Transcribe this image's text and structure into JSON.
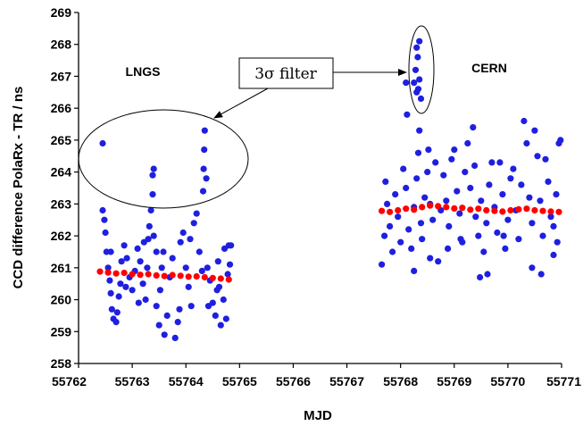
{
  "chart_data": {
    "type": "scatter",
    "title": "",
    "xlabel": "MJD",
    "ylabel": "CCD difference PolaRx - TR / ns",
    "xlim": [
      55762,
      55771
    ],
    "ylim": [
      258,
      269
    ],
    "xticks": [
      "55762",
      "55763",
      "55764",
      "55765",
      "55766",
      "55767",
      "55768",
      "55769",
      "55770",
      "55771"
    ],
    "yticks": [
      "258",
      "259",
      "260",
      "261",
      "262",
      "263",
      "264",
      "265",
      "266",
      "267",
      "268",
      "269"
    ],
    "grid": false,
    "legend": "none",
    "annotations": {
      "lngs_label": "LNGS",
      "cern_label": "CERN",
      "filter_label": "3σ filter"
    },
    "series": [
      {
        "color": "#1f1fe0",
        "marker": "circle",
        "points": [
          [
            55762.45,
            264.9
          ],
          [
            55762.45,
            262.8
          ],
          [
            55762.48,
            262.5
          ],
          [
            55762.5,
            262.1
          ],
          [
            55762.52,
            261.5
          ],
          [
            55762.55,
            261.0
          ],
          [
            55762.58,
            260.6
          ],
          [
            55762.6,
            260.2
          ],
          [
            55762.62,
            259.7
          ],
          [
            55762.65,
            259.4
          ],
          [
            55762.7,
            259.3
          ],
          [
            55762.72,
            259.6
          ],
          [
            55762.75,
            260.1
          ],
          [
            55762.78,
            260.5
          ],
          [
            55762.8,
            261.2
          ],
          [
            55762.85,
            261.7
          ],
          [
            55762.9,
            261.3
          ],
          [
            55762.95,
            260.7
          ],
          [
            55763.0,
            260.3
          ],
          [
            55763.05,
            260.9
          ],
          [
            55763.1,
            261.6
          ],
          [
            55763.15,
            261.2
          ],
          [
            55763.2,
            260.5
          ],
          [
            55763.25,
            260.0
          ],
          [
            55763.28,
            261.0
          ],
          [
            55763.3,
            261.9
          ],
          [
            55763.32,
            262.3
          ],
          [
            55763.35,
            262.8
          ],
          [
            55763.38,
            263.3
          ],
          [
            55763.38,
            263.9
          ],
          [
            55763.4,
            264.1
          ],
          [
            55763.4,
            262.0
          ],
          [
            55763.45,
            261.5
          ],
          [
            55763.45,
            259.8
          ],
          [
            55763.5,
            259.2
          ],
          [
            55763.52,
            260.3
          ],
          [
            55763.55,
            261.0
          ],
          [
            55763.6,
            258.9
          ],
          [
            55763.65,
            259.5
          ],
          [
            55763.7,
            260.7
          ],
          [
            55763.75,
            261.3
          ],
          [
            55763.8,
            258.8
          ],
          [
            55763.85,
            259.3
          ],
          [
            55763.9,
            261.8
          ],
          [
            55763.95,
            262.1
          ],
          [
            55764.0,
            261.0
          ],
          [
            55764.05,
            260.4
          ],
          [
            55764.1,
            259.8
          ],
          [
            55764.15,
            262.4
          ],
          [
            55764.2,
            262.7
          ],
          [
            55764.25,
            261.5
          ],
          [
            55764.3,
            260.9
          ],
          [
            55764.32,
            263.4
          ],
          [
            55764.33,
            264.1
          ],
          [
            55764.34,
            264.7
          ],
          [
            55764.35,
            265.3
          ],
          [
            55764.38,
            263.8
          ],
          [
            55764.4,
            261.0
          ],
          [
            55764.45,
            260.6
          ],
          [
            55764.5,
            259.9
          ],
          [
            55764.55,
            259.5
          ],
          [
            55764.58,
            260.3
          ],
          [
            55764.6,
            261.2
          ],
          [
            55764.65,
            259.2
          ],
          [
            55764.7,
            260.0
          ],
          [
            55764.72,
            261.6
          ],
          [
            55764.75,
            259.4
          ],
          [
            55764.78,
            260.8
          ],
          [
            55764.8,
            261.7
          ],
          [
            55764.82,
            261.1
          ],
          [
            55764.84,
            261.7
          ],
          [
            55762.6,
            261.5
          ],
          [
            55762.88,
            260.4
          ],
          [
            55763.12,
            259.9
          ],
          [
            55763.22,
            261.8
          ],
          [
            55763.58,
            261.5
          ],
          [
            55763.88,
            259.7
          ],
          [
            55764.08,
            261.9
          ],
          [
            55764.42,
            259.8
          ],
          [
            55764.62,
            260.4
          ],
          [
            55767.65,
            261.1
          ],
          [
            55767.7,
            262.0
          ],
          [
            55767.72,
            263.7
          ],
          [
            55767.75,
            263.0
          ],
          [
            55767.8,
            262.3
          ],
          [
            55767.85,
            261.5
          ],
          [
            55767.9,
            263.3
          ],
          [
            55767.95,
            262.6
          ],
          [
            55768.0,
            261.8
          ],
          [
            55768.05,
            264.1
          ],
          [
            55768.1,
            263.5
          ],
          [
            55768.15,
            262.2
          ],
          [
            55768.2,
            261.6
          ],
          [
            55768.25,
            262.9
          ],
          [
            55768.3,
            263.8
          ],
          [
            55768.33,
            264.6
          ],
          [
            55768.35,
            265.3
          ],
          [
            55768.38,
            262.4
          ],
          [
            55768.4,
            261.9
          ],
          [
            55768.45,
            263.2
          ],
          [
            55768.5,
            264.0
          ],
          [
            55768.52,
            264.7
          ],
          [
            55768.55,
            263.0
          ],
          [
            55768.6,
            262.5
          ],
          [
            55768.65,
            264.3
          ],
          [
            55768.7,
            261.2
          ],
          [
            55768.75,
            262.8
          ],
          [
            55768.8,
            263.9
          ],
          [
            55768.85,
            263.1
          ],
          [
            55768.9,
            262.3
          ],
          [
            55768.95,
            264.4
          ],
          [
            55769.0,
            264.7
          ],
          [
            55769.05,
            263.4
          ],
          [
            55769.1,
            262.7
          ],
          [
            55769.15,
            261.8
          ],
          [
            55769.2,
            264.0
          ],
          [
            55769.25,
            264.9
          ],
          [
            55769.3,
            263.5
          ],
          [
            55769.35,
            265.4
          ],
          [
            55769.38,
            264.2
          ],
          [
            55769.4,
            262.6
          ],
          [
            55769.45,
            262.0
          ],
          [
            55769.5,
            263.1
          ],
          [
            55769.55,
            261.5
          ],
          [
            55769.6,
            262.4
          ],
          [
            55769.62,
            260.8
          ],
          [
            55769.65,
            263.6
          ],
          [
            55769.7,
            264.3
          ],
          [
            55769.75,
            262.9
          ],
          [
            55769.8,
            262.1
          ],
          [
            55769.85,
            264.3
          ],
          [
            55769.9,
            263.3
          ],
          [
            55769.95,
            261.6
          ],
          [
            55770.0,
            262.5
          ],
          [
            55770.05,
            263.8
          ],
          [
            55770.1,
            264.1
          ],
          [
            55770.15,
            262.8
          ],
          [
            55770.2,
            261.9
          ],
          [
            55770.25,
            263.6
          ],
          [
            55770.3,
            265.6
          ],
          [
            55770.35,
            264.9
          ],
          [
            55770.4,
            263.2
          ],
          [
            55770.45,
            262.4
          ],
          [
            55770.5,
            265.3
          ],
          [
            55770.55,
            264.5
          ],
          [
            55770.6,
            263.1
          ],
          [
            55770.62,
            260.8
          ],
          [
            55770.65,
            262.0
          ],
          [
            55770.7,
            264.4
          ],
          [
            55770.75,
            263.7
          ],
          [
            55770.8,
            262.6
          ],
          [
            55770.85,
            262.3
          ],
          [
            55770.9,
            263.3
          ],
          [
            55770.92,
            261.8
          ],
          [
            55770.95,
            264.9
          ],
          [
            55770.98,
            265.0
          ],
          [
            55768.1,
            266.8
          ],
          [
            55768.12,
            265.8
          ],
          [
            55768.25,
            260.9
          ],
          [
            55768.55,
            261.3
          ],
          [
            55768.88,
            261.6
          ],
          [
            55769.12,
            261.9
          ],
          [
            55769.48,
            260.7
          ],
          [
            55769.92,
            262.0
          ],
          [
            55770.45,
            261.0
          ],
          [
            55770.85,
            261.4
          ]
        ]
      },
      {
        "color": "#1f1fe0",
        "marker": "circle",
        "points": [
          [
            55768.3,
            267.9
          ],
          [
            55768.32,
            267.6
          ],
          [
            55768.28,
            267.2
          ],
          [
            55768.35,
            268.1
          ],
          [
            55768.25,
            266.8
          ],
          [
            55768.3,
            266.5
          ],
          [
            55768.38,
            266.3
          ],
          [
            55768.35,
            266.9
          ],
          [
            55768.33,
            266.6
          ]
        ]
      },
      {
        "color": "#ff0000",
        "marker": "circle",
        "points": [
          [
            55762.4,
            260.88
          ],
          [
            55762.55,
            260.85
          ],
          [
            55762.7,
            260.82
          ],
          [
            55762.85,
            260.84
          ],
          [
            55763.0,
            260.8
          ],
          [
            55763.15,
            260.78
          ],
          [
            55763.3,
            260.8
          ],
          [
            55763.45,
            260.76
          ],
          [
            55763.6,
            260.74
          ],
          [
            55763.75,
            260.77
          ],
          [
            55763.9,
            260.75
          ],
          [
            55764.05,
            260.72
          ],
          [
            55764.2,
            260.73
          ],
          [
            55764.35,
            260.7
          ],
          [
            55764.5,
            260.68
          ],
          [
            55764.65,
            260.66
          ],
          [
            55764.8,
            260.63
          ],
          [
            55767.65,
            262.78
          ],
          [
            55767.8,
            262.75
          ],
          [
            55767.95,
            262.8
          ],
          [
            55768.1,
            262.85
          ],
          [
            55768.25,
            262.82
          ],
          [
            55768.4,
            262.9
          ],
          [
            55768.55,
            262.95
          ],
          [
            55768.7,
            262.93
          ],
          [
            55768.85,
            262.9
          ],
          [
            55769.0,
            262.86
          ],
          [
            55769.15,
            262.88
          ],
          [
            55769.3,
            262.82
          ],
          [
            55769.45,
            262.85
          ],
          [
            55769.6,
            262.8
          ],
          [
            55769.75,
            262.78
          ],
          [
            55769.9,
            262.76
          ],
          [
            55770.05,
            262.8
          ],
          [
            55770.2,
            262.83
          ],
          [
            55770.35,
            262.85
          ],
          [
            55770.5,
            262.8
          ],
          [
            55770.65,
            262.78
          ],
          [
            55770.8,
            262.76
          ],
          [
            55770.95,
            262.75
          ]
        ]
      }
    ]
  }
}
